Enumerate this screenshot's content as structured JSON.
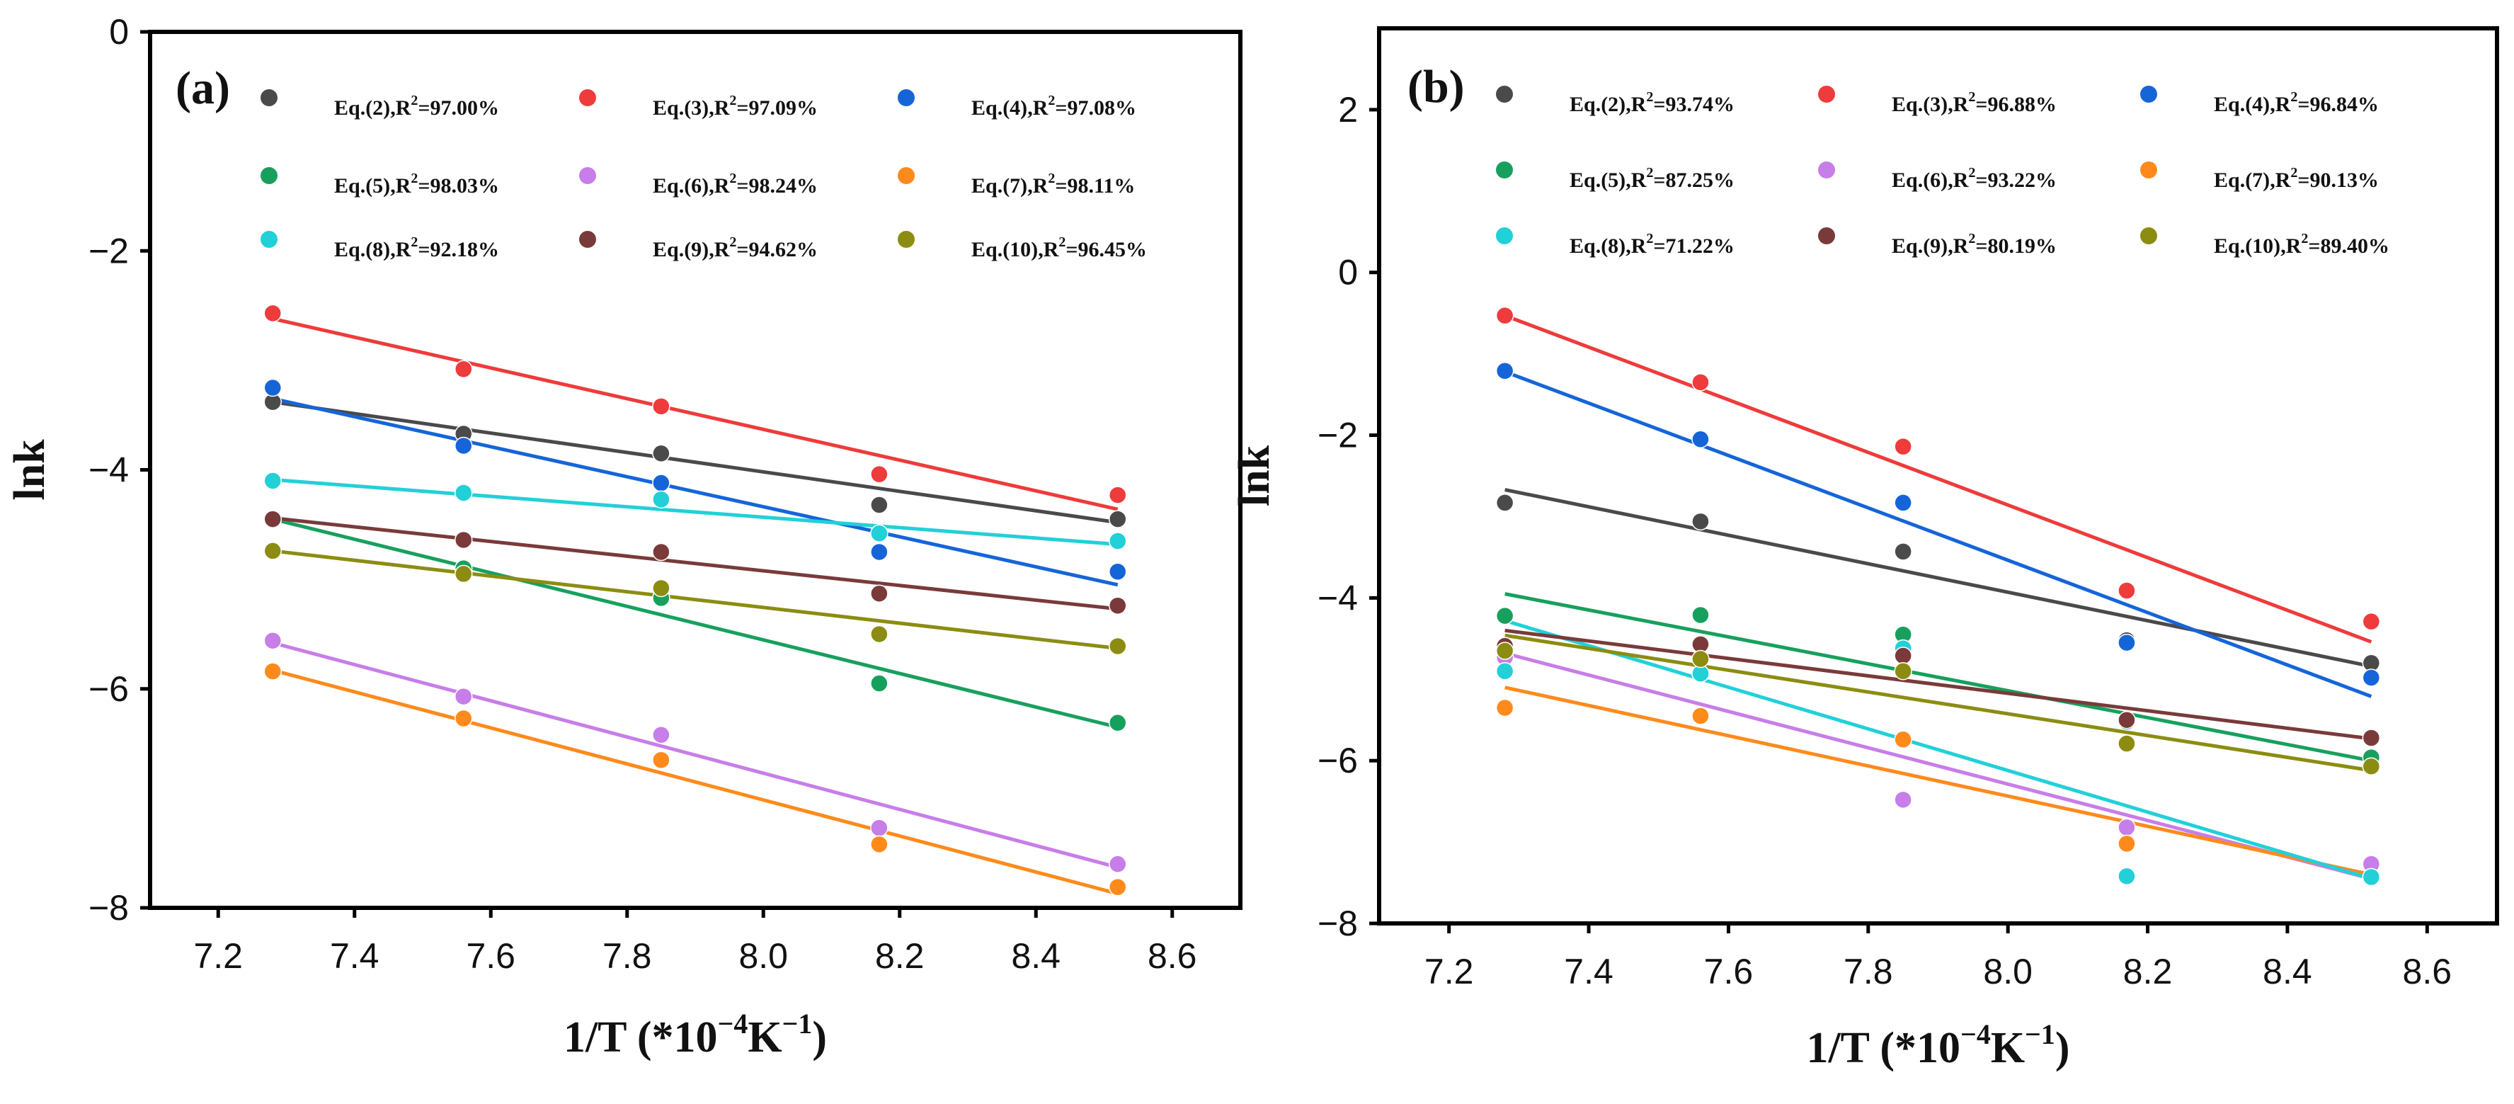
{
  "chart_data": [
    {
      "type": "scatter",
      "panel_label": "(a)",
      "xlabel_main": "1/T (*10",
      "xlabel_exp": "−4",
      "xlabel_unit": "K",
      "xlabel_unit_exp": "−1",
      "xlabel_close": ")",
      "ylabel": "lnk",
      "xlim": [
        7.1,
        8.7
      ],
      "ylim": [
        -8,
        0
      ],
      "xticks": [
        "7.2",
        "7.4",
        "7.6",
        "7.8",
        "8.0",
        "8.2",
        "8.4",
        "8.6"
      ],
      "yticks": [
        "0",
        "−2",
        "−4",
        "−6",
        "−8"
      ],
      "x": [
        7.28,
        7.56,
        7.85,
        8.17,
        8.52
      ],
      "series": [
        {
          "name": "Eq.(2)",
          "r2": "97.00%",
          "color": "#4a4a4a",
          "values": [
            -3.38,
            -3.67,
            -3.85,
            -4.32,
            -4.45
          ],
          "fit": [
            -3.38,
            -4.48
          ]
        },
        {
          "name": "Eq.(3)",
          "r2": "97.09%",
          "color": "#ee3b3b",
          "values": [
            -2.57,
            -3.08,
            -3.42,
            -4.04,
            -4.23
          ],
          "fit": [
            -2.62,
            -4.36
          ]
        },
        {
          "name": "Eq.(4)",
          "r2": "97.08%",
          "color": "#1565d8",
          "values": [
            -3.25,
            -3.78,
            -4.12,
            -4.75,
            -4.93
          ],
          "fit": [
            -3.35,
            -5.05
          ]
        },
        {
          "name": "Eq.(5)",
          "r2": "98.03%",
          "color": "#17a05d",
          "values": [
            -4.46,
            -4.9,
            -5.17,
            -5.95,
            -6.31
          ],
          "fit": [
            -4.45,
            -6.35
          ]
        },
        {
          "name": "Eq.(6)",
          "r2": "98.24%",
          "color": "#c77ee8",
          "values": [
            -5.56,
            -6.07,
            -6.42,
            -7.27,
            -7.6
          ],
          "fit": [
            -5.58,
            -7.63
          ]
        },
        {
          "name": "Eq.(7)",
          "r2": "98.11%",
          "color": "#ff8a1c",
          "values": [
            -5.84,
            -6.27,
            -6.65,
            -7.42,
            -7.81
          ],
          "fit": [
            -5.83,
            -7.87
          ]
        },
        {
          "name": "Eq.(8)",
          "r2": "92.18%",
          "color": "#22d0d8",
          "values": [
            -4.1,
            -4.21,
            -4.27,
            -4.58,
            -4.65
          ],
          "fit": [
            -4.09,
            -4.68
          ]
        },
        {
          "name": "Eq.(9)",
          "r2": "94.62%",
          "color": "#7a3a3a",
          "values": [
            -4.45,
            -4.64,
            -4.75,
            -5.13,
            -5.24
          ],
          "fit": [
            -4.44,
            -5.27
          ]
        },
        {
          "name": "Eq.(10)",
          "r2": "96.45%",
          "color": "#8c8c12",
          "values": [
            -4.74,
            -4.95,
            -5.08,
            -5.5,
            -5.61
          ],
          "fit": [
            -4.74,
            -5.63
          ]
        }
      ]
    },
    {
      "type": "scatter",
      "panel_label": "(b)",
      "xlabel_main": "1/T (*10",
      "xlabel_exp": "−4",
      "xlabel_unit": "K",
      "xlabel_unit_exp": "−1",
      "xlabel_close": ")",
      "ylabel": "lnk",
      "xlim": [
        7.1,
        8.7
      ],
      "ylim": [
        -8,
        3
      ],
      "xticks": [
        "7.2",
        "7.4",
        "7.6",
        "7.8",
        "8.0",
        "8.2",
        "8.4",
        "8.6"
      ],
      "yticks": [
        "2",
        "0",
        "−2",
        "−4",
        "−6",
        "−8"
      ],
      "x": [
        7.28,
        7.56,
        7.85,
        8.17,
        8.52
      ],
      "series": [
        {
          "name": "Eq.(2)",
          "r2": "93.74%",
          "color": "#4a4a4a",
          "values": [
            -2.83,
            -3.06,
            -3.43,
            -4.52,
            -4.8
          ],
          "fit": [
            -2.67,
            -4.84
          ]
        },
        {
          "name": "Eq.(3)",
          "r2": "96.88%",
          "color": "#ee3b3b",
          "values": [
            -0.53,
            -1.35,
            -2.14,
            -3.91,
            -4.29
          ],
          "fit": [
            -0.53,
            -4.54
          ]
        },
        {
          "name": "Eq.(4)",
          "r2": "96.84%",
          "color": "#1565d8",
          "values": [
            -1.21,
            -2.05,
            -2.83,
            -4.55,
            -4.98
          ],
          "fit": [
            -1.22,
            -5.21
          ]
        },
        {
          "name": "Eq.(5)",
          "r2": "87.25%",
          "color": "#17a05d",
          "values": [
            -4.22,
            -4.21,
            -4.45,
            -5.52,
            -5.96
          ],
          "fit": [
            -3.95,
            -6.0
          ]
        },
        {
          "name": "Eq.(6)",
          "r2": "93.22%",
          "color": "#c77ee8",
          "values": [
            -4.73,
            -4.93,
            -6.48,
            -6.82,
            -7.27
          ],
          "fit": [
            -4.68,
            -7.45
          ]
        },
        {
          "name": "Eq.(7)",
          "r2": "90.13%",
          "color": "#ff8a1c",
          "values": [
            -5.35,
            -5.45,
            -5.74,
            -7.02,
            -7.43
          ],
          "fit": [
            -5.1,
            -7.4
          ]
        },
        {
          "name": "Eq.(8)",
          "r2": "71.22%",
          "color": "#22d0d8",
          "values": [
            -4.9,
            -4.93,
            -4.62,
            -7.42,
            -7.43
          ],
          "fit": [
            -4.28,
            -7.45
          ]
        },
        {
          "name": "Eq.(9)",
          "r2": "80.19%",
          "color": "#7a3a3a",
          "values": [
            -4.59,
            -4.57,
            -4.71,
            -5.5,
            -5.72
          ],
          "fit": [
            -4.4,
            -5.73
          ]
        },
        {
          "name": "Eq.(10)",
          "r2": "89.40%",
          "color": "#8c8c12",
          "values": [
            -4.65,
            -4.75,
            -4.9,
            -5.79,
            -6.07
          ],
          "fit": [
            -4.46,
            -6.12
          ]
        }
      ]
    }
  ]
}
